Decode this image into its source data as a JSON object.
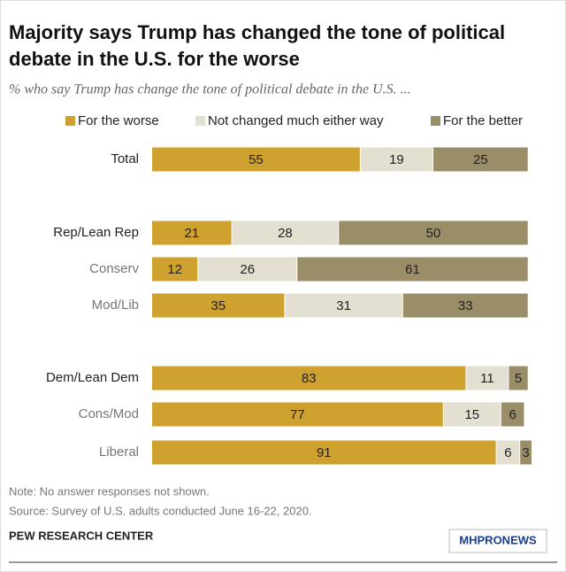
{
  "chart_data": {
    "type": "stacked-bar",
    "title": [
      "Majority says Trump has changed the tone of political",
      "debate in the U.S. for the worse"
    ],
    "subtitle": "% who say Trump has change the tone of political debate in the U.S. ...",
    "categories": [
      "Total",
      "Rep/Lean Rep",
      "Conserv",
      "Mod/Lib",
      "Dem/Lean Dem",
      "Cons/Mod",
      "Liberal"
    ],
    "series": [
      {
        "name": "For the worse",
        "color": "#cfa230",
        "values": [
          55,
          21,
          12,
          35,
          83,
          77,
          91
        ]
      },
      {
        "name": "Not changed much either way",
        "color": "#e3dfd1",
        "values": [
          19,
          28,
          26,
          31,
          11,
          15,
          6
        ]
      },
      {
        "name": "For the better",
        "color": "#9a8e68",
        "values": [
          25,
          50,
          61,
          33,
          5,
          6,
          3
        ]
      }
    ],
    "legend": "top",
    "notes": [
      "Note: No answer responses not shown.",
      "Source: Survey of U.S. adults conducted June 16-22, 2020."
    ],
    "footer": "PEW RESEARCH CENTER",
    "watermark": "MHPRONEWS"
  }
}
